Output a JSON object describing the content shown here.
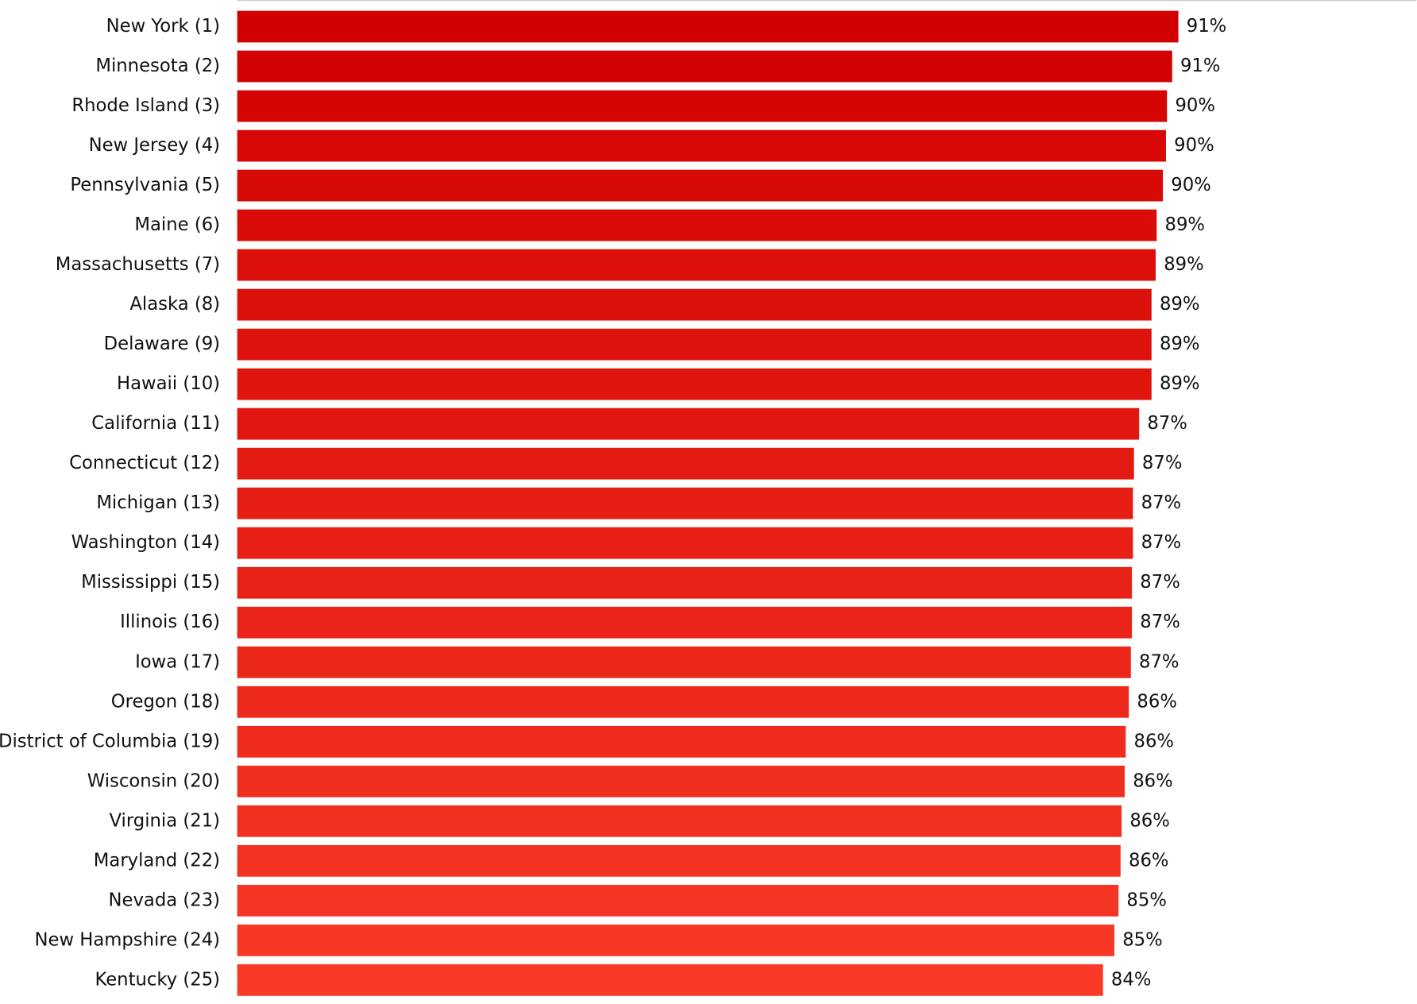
{
  "chart_data": {
    "type": "hbar",
    "categories": [
      "New York (1)",
      "Minnesota (2)",
      "Rhode Island (3)",
      "New Jersey (4)",
      "Pennsylvania (5)",
      "Maine (6)",
      "Massachusetts (7)",
      "Alaska (8)",
      "Delaware (9)",
      "Hawaii (10)",
      "California (11)",
      "Connecticut (12)",
      "Michigan (13)",
      "Washington (14)",
      "Mississippi (15)",
      "Illinois (16)",
      "Iowa (17)",
      "Oregon (18)",
      "District of Columbia (19)",
      "Wisconsin (20)",
      "Virginia (21)",
      "Maryland (22)",
      "Nevada (23)",
      "New Hampshire (24)",
      "Kentucky (25)"
    ],
    "values": [
      91.2,
      90.6,
      90.1,
      90.0,
      89.7,
      89.1,
      89.0,
      88.6,
      88.6,
      88.6,
      87.4,
      86.9,
      86.8,
      86.8,
      86.7,
      86.7,
      86.6,
      86.4,
      86.1,
      86.0,
      85.7,
      85.6,
      85.4,
      85.0,
      83.9
    ],
    "value_labels": [
      "91%",
      "91%",
      "90%",
      "90%",
      "90%",
      "89%",
      "89%",
      "89%",
      "89%",
      "89%",
      "87%",
      "87%",
      "87%",
      "87%",
      "87%",
      "87%",
      "87%",
      "86%",
      "86%",
      "86%",
      "86%",
      "86%",
      "85%",
      "85%",
      "84%"
    ],
    "colors": [
      "#d20000",
      "#d40202",
      "#d50503",
      "#d70705",
      "#d80a06",
      "#da0c08",
      "#dc0f0a",
      "#dd110b",
      "#df130d",
      "#e0160e",
      "#e21810",
      "#e31b11",
      "#e51d13",
      "#e71f15",
      "#e82216",
      "#ea2418",
      "#eb2719",
      "#ed291b",
      "#ef2c1d",
      "#f02e1e",
      "#f23020",
      "#f33321",
      "#f53523",
      "#f63824",
      "#f83a26"
    ],
    "xlim": [
      0,
      100
    ]
  }
}
